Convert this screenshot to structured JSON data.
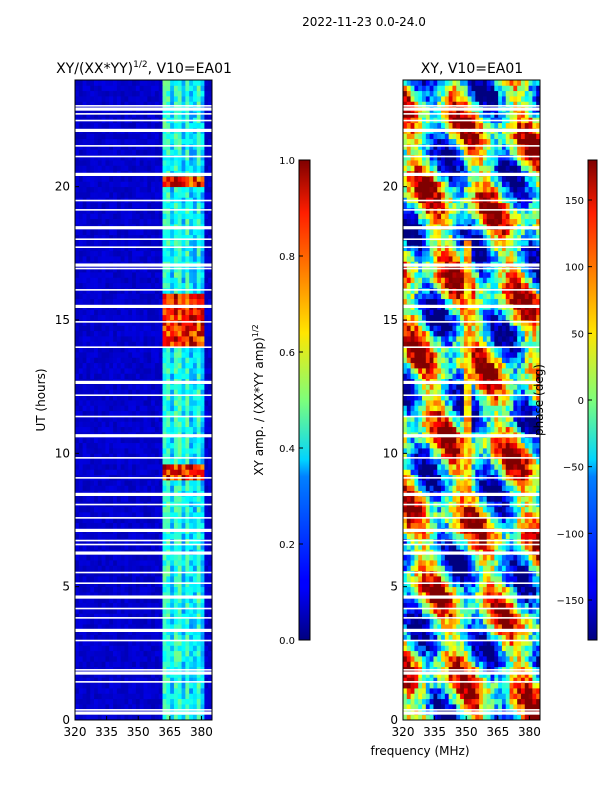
{
  "suptitle": "2022-11-23 0.0-24.0",
  "xlabel": "frequency (MHz)",
  "chart_data": [
    {
      "type": "heatmap",
      "title": "XY/(XX*YY)",
      "title_exp": "1/2",
      "title_suffix": ", V10=EA01",
      "xlabel": "frequency (MHz)",
      "ylabel": "UT (hours)",
      "x_range": [
        320,
        385
      ],
      "xticks": [
        320,
        335,
        350,
        365,
        380
      ],
      "ylim": [
        0,
        24
      ],
      "yticks": [
        0,
        5,
        10,
        15,
        20
      ],
      "colorbar": {
        "label": "XY amp. / (XX*YY amp)",
        "label_exp": "1/2",
        "range": [
          0.0,
          1.0
        ],
        "ticks": [
          "0.0",
          "0.2",
          "0.4",
          "0.6",
          "0.8",
          "1.0"
        ],
        "colormap": "jet"
      },
      "bright_band_MHz": [
        362,
        382
      ],
      "peak_hours": [
        [
          14,
          16
        ],
        [
          20,
          20.5
        ],
        [
          9,
          9.6
        ]
      ]
    },
    {
      "type": "heatmap",
      "title": "XY, V10=EA01",
      "xlabel": "frequency (MHz)",
      "ylabel": "",
      "x_range": [
        320,
        385
      ],
      "xticks": [
        320,
        335,
        350,
        365,
        380
      ],
      "ylim": [
        0,
        24
      ],
      "yticks": [
        0,
        5,
        10,
        15,
        20
      ],
      "colorbar": {
        "label": "phase (deg)",
        "range": [
          -180,
          180
        ],
        "ticks": [
          "150",
          "100",
          "50",
          "0",
          "−50",
          "−100",
          "−150"
        ],
        "colormap": "jet"
      }
    }
  ]
}
